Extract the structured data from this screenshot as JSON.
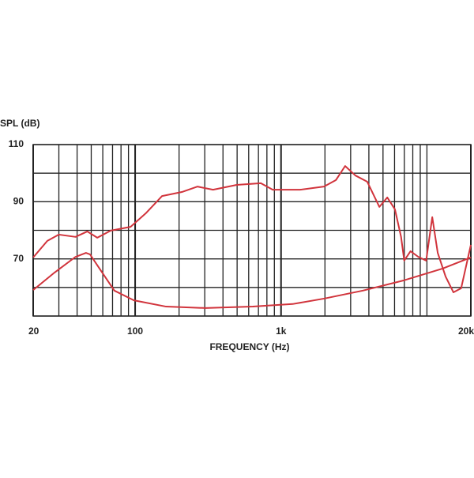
{
  "chart_data": {
    "type": "line",
    "title": "SPL (dB)",
    "x_label": "FREQUENCY (Hz)",
    "xlog": true,
    "xlim": [
      20,
      20000
    ],
    "xticks": [
      20,
      100,
      {
        "value": 1000,
        "label": "1k"
      },
      {
        "value": 20000,
        "label": "20k"
      }
    ],
    "x_gridlines": [
      20,
      30,
      40,
      50,
      60,
      70,
      80,
      90,
      100,
      200,
      300,
      400,
      500,
      600,
      700,
      800,
      900,
      1000,
      2000,
      3000,
      4000,
      5000,
      6000,
      7000,
      8000,
      9000,
      10000,
      20000
    ],
    "ylim": [
      50,
      110
    ],
    "yticks": [
      70,
      90,
      110
    ],
    "y_gridlines": [
      50,
      60,
      80,
      100
    ],
    "grid": true,
    "series": [
      {
        "color": "#d1343c",
        "x": [
          20,
          25,
          30,
          39,
          47,
          55,
          68,
          93,
          118,
          153,
          209,
          267,
          342,
          497,
          727,
          877,
          1350,
          1970,
          2380,
          2750,
          3230,
          3900,
          4720,
          5350,
          6040,
          6650,
          6990,
          7720,
          8730,
          9880,
          10880,
          11860,
          13430,
          15190,
          17160,
          20000
        ],
        "values": [
          70.5,
          76.3,
          78.5,
          77.7,
          79.6,
          77.4,
          79.9,
          81.2,
          85.9,
          92,
          93.4,
          95.3,
          94.2,
          95.9,
          96.5,
          94.2,
          94.2,
          95.3,
          97.6,
          102.5,
          99.2,
          97,
          88.2,
          91.5,
          87.3,
          77.7,
          69.4,
          72.7,
          70.7,
          69.4,
          84.6,
          72.1,
          63.8,
          58.3,
          59.7,
          74.9
        ]
      },
      {
        "color": "#d1343c",
        "x": [
          20,
          28,
          39,
          46,
          49,
          57,
          72,
          98,
          163,
          303,
          640,
          1200,
          1970,
          3640,
          6850,
          12800,
          20000
        ],
        "values": [
          59.1,
          65.2,
          70.7,
          72.1,
          71.6,
          66.6,
          58.9,
          55.5,
          53.3,
          52.8,
          53.3,
          54.2,
          56.1,
          58.9,
          62.4,
          66.6,
          70.5
        ]
      }
    ]
  }
}
